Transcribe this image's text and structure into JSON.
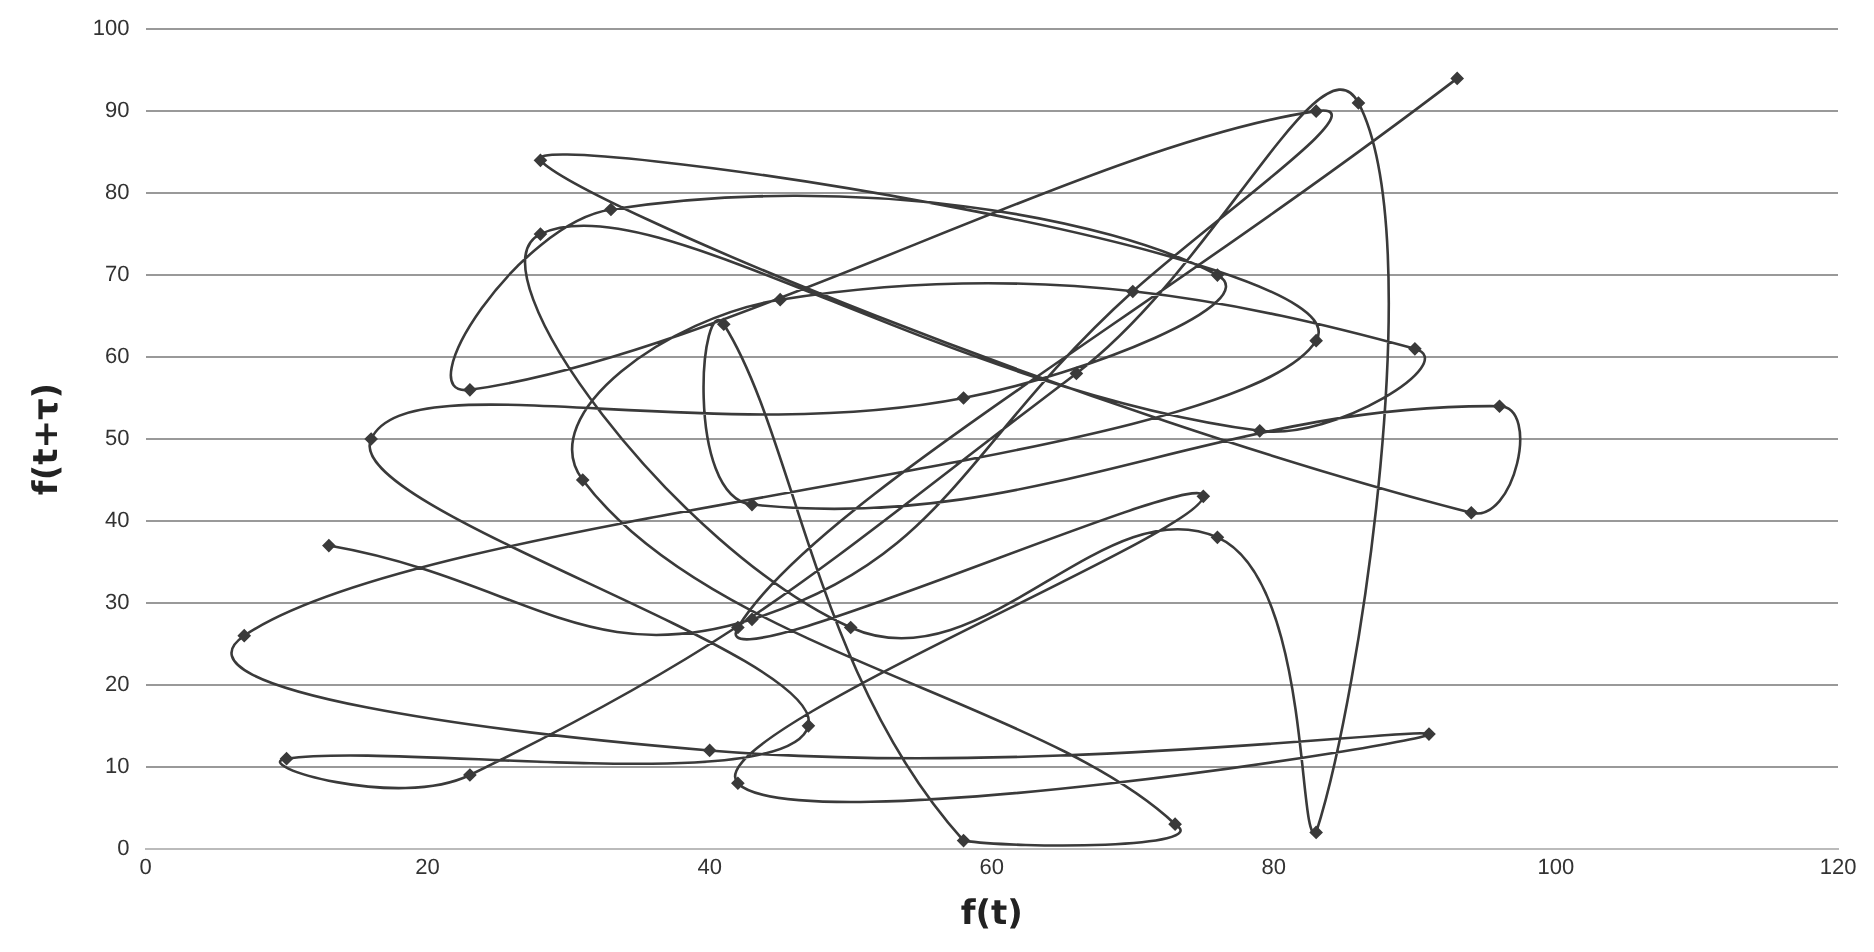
{
  "chart_data": {
    "type": "line",
    "xlabel": "f(t)",
    "ylabel": "f(t+τ)",
    "xlim": [
      0,
      120
    ],
    "xticks": [
      0,
      20,
      40,
      60,
      80,
      100,
      120
    ],
    "ylim": [
      0,
      100
    ],
    "yticks": [
      0,
      10,
      20,
      30,
      40,
      50,
      60,
      70,
      80,
      90,
      100
    ],
    "grid": "y",
    "legend": false,
    "marker": "diamond",
    "line_style": "solid",
    "series": [
      {
        "color": "#3a3a3a",
        "x": [
          13,
          43,
          70,
          83,
          23,
          33,
          76,
          58,
          16,
          47,
          10,
          23,
          66,
          86,
          83,
          76,
          50,
          28,
          79,
          90,
          45,
          31,
          73,
          58,
          41,
          43,
          96,
          94,
          28,
          83,
          7,
          40,
          91,
          42,
          75,
          42,
          93
        ],
        "values": [
          37,
          28,
          68,
          90,
          56,
          78,
          70,
          55,
          50,
          15,
          11,
          9,
          58,
          91,
          2,
          38,
          27,
          75,
          51,
          61,
          67,
          45,
          3,
          1,
          64,
          42,
          54,
          41,
          84,
          62,
          26,
          12,
          14,
          8,
          43,
          27,
          94
        ]
      }
    ]
  }
}
